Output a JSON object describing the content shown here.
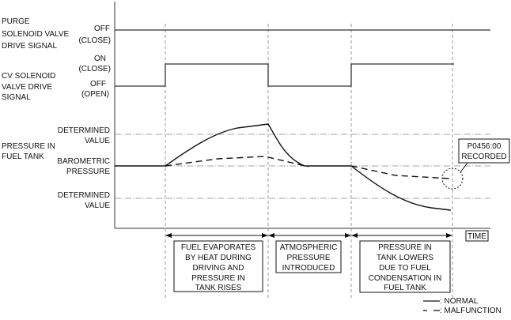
{
  "signals": {
    "purge": {
      "label": [
        "PURGE",
        "SOLENOID VALVE",
        "DRIVE SIGNAL"
      ],
      "state": [
        "OFF",
        "(CLOSE)"
      ]
    },
    "cv": {
      "label": [
        "CV SOLENOID",
        "VALVE DRIVE",
        "SIGNAL"
      ],
      "on_state": [
        "ON",
        "(CLOSE)"
      ],
      "off_state": [
        "OFF",
        "(OPEN)"
      ]
    },
    "pressure": {
      "label": [
        "PRESSURE IN",
        "FUEL TANK"
      ],
      "upper": [
        "DETERMINED",
        "VALUE"
      ],
      "baro": [
        "BAROMETRIC",
        "PRESSURE"
      ],
      "lower": [
        "DETERMINED",
        "VALUE"
      ]
    }
  },
  "dtc_callout": [
    "P0456:00",
    "RECORDED"
  ],
  "time_label": "TIME",
  "phases": [
    [
      "FUEL EVAPORATES",
      "BY HEAT DURING",
      "DRIVING AND",
      "PRESSURE IN",
      "TANK RISES"
    ],
    [
      "ATMOSPHERIC",
      "PRESSURE",
      "INTRODUCED"
    ],
    [
      "PRESSURE IN",
      "TANK LOWERS",
      "DUE TO FUEL",
      "CONDENSATION IN",
      "FUEL TANK"
    ]
  ],
  "legend": {
    "normal": ": NORMAL",
    "malfunction": ": MALFUNCTION"
  }
}
